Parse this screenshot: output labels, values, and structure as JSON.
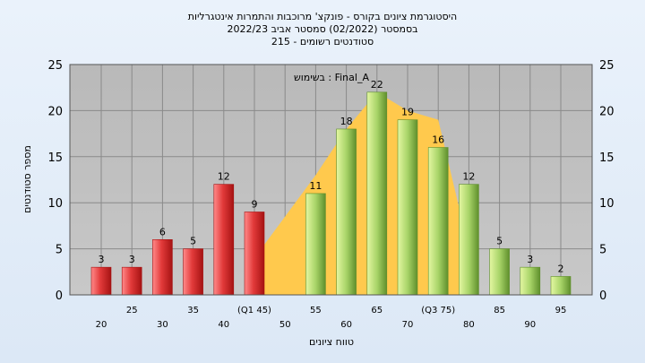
{
  "chart_data": {
    "type": "bar",
    "title_lines": [
      "היסטוגרמת ציונים בקורס - פונקצ' מרוכבות והתמרות אינטגרליות",
      "בסמסטר  (02/2022)  סמסטר אביב 2022/23",
      "סטודנטים רשומים - 215"
    ],
    "annotation": "בשימוש : Final_A",
    "xlabel": "טווח ציונים",
    "ylabel": "מספר סטודנטים",
    "ylim": [
      0,
      25
    ],
    "yticks": [
      0,
      5,
      10,
      15,
      20,
      25
    ],
    "xticks": [
      {
        "value": 20,
        "label": "20",
        "row": 2
      },
      {
        "value": 25,
        "label": "25",
        "row": 1
      },
      {
        "value": 30,
        "label": "30",
        "row": 2
      },
      {
        "value": 35,
        "label": "35",
        "row": 1
      },
      {
        "value": 40,
        "label": "40",
        "row": 2
      },
      {
        "value": 45,
        "label": "(Q1 45)",
        "row": 1
      },
      {
        "value": 50,
        "label": "50",
        "row": 2
      },
      {
        "value": 55,
        "label": "55",
        "row": 1
      },
      {
        "value": 60,
        "label": "60",
        "row": 2
      },
      {
        "value": 65,
        "label": "65",
        "row": 1
      },
      {
        "value": 70,
        "label": "70",
        "row": 2
      },
      {
        "value": 75,
        "label": "(Q3 75)",
        "row": 1
      },
      {
        "value": 80,
        "label": "80",
        "row": 2
      },
      {
        "value": 85,
        "label": "85",
        "row": 1
      },
      {
        "value": 90,
        "label": "90",
        "row": 2
      },
      {
        "value": 95,
        "label": "95",
        "row": 1
      }
    ],
    "bars": [
      {
        "x": 20,
        "value": 3,
        "group": "red"
      },
      {
        "x": 25,
        "value": 3,
        "group": "red"
      },
      {
        "x": 30,
        "value": 6,
        "group": "red"
      },
      {
        "x": 35,
        "value": 5,
        "group": "red"
      },
      {
        "x": 40,
        "value": 12,
        "group": "red"
      },
      {
        "x": 45,
        "value": 9,
        "group": "red"
      },
      {
        "x": 55,
        "value": 11,
        "group": "green"
      },
      {
        "x": 60,
        "value": 18,
        "group": "green"
      },
      {
        "x": 65,
        "value": 22,
        "group": "green"
      },
      {
        "x": 70,
        "value": 19,
        "group": "green"
      },
      {
        "x": 75,
        "value": 16,
        "group": "green"
      },
      {
        "x": 80,
        "value": 12,
        "group": "green"
      },
      {
        "x": 85,
        "value": 5,
        "group": "green"
      },
      {
        "x": 90,
        "value": 3,
        "group": "green"
      },
      {
        "x": 95,
        "value": 2,
        "group": "green"
      }
    ],
    "area": {
      "color": "#ffc94d",
      "points": [
        [
          45,
          4
        ],
        [
          55,
          13
        ],
        [
          60,
          18
        ],
        [
          65,
          22
        ],
        [
          70,
          20
        ],
        [
          75,
          19
        ],
        [
          80,
          5
        ]
      ]
    },
    "colors": {
      "red_light": "#ff8a8a",
      "red_mid": "#e23a3a",
      "red_dark": "#a51212",
      "green_light": "#e4f7a2",
      "green_mid": "#a8d468",
      "green_dark": "#5f8f2c",
      "plot_bg_top": "#b9b9b9",
      "plot_bg_bottom": "#c8c8c8",
      "grid": "#8a8a8a"
    },
    "grid": true
  }
}
